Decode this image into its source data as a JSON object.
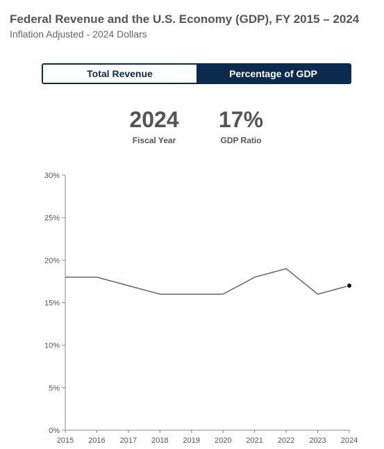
{
  "header": {
    "title": "Federal Revenue and the U.S. Economy (GDP), FY 2015 – 2024",
    "subtitle": "Inflation Adjusted - 2024 Dollars"
  },
  "toggle": {
    "total_revenue_label": "Total Revenue",
    "percentage_gdp_label": "Percentage of GDP",
    "active": "Percentage of GDP"
  },
  "stats": {
    "year_value": "2024",
    "year_label": "Fiscal Year",
    "ratio_value": "17%",
    "ratio_label": "GDP Ratio"
  },
  "colors": {
    "accent": "#0a2a4e",
    "line": "#666666",
    "axis": "#888888"
  },
  "chart_data": {
    "type": "line",
    "x": [
      "2015",
      "2016",
      "2017",
      "2018",
      "2019",
      "2020",
      "2021",
      "2022",
      "2023",
      "2024"
    ],
    "series": [
      {
        "values": [
          18,
          18,
          17,
          16,
          16,
          16,
          18,
          19,
          16,
          17
        ]
      }
    ],
    "ylim": [
      0,
      30
    ],
    "yticks": [
      "0%",
      "5%",
      "10%",
      "15%",
      "20%",
      "25%",
      "30%"
    ],
    "ytick_values": [
      0,
      5,
      10,
      15,
      20,
      25,
      30
    ],
    "highlight_point": "2024",
    "grid": false
  }
}
